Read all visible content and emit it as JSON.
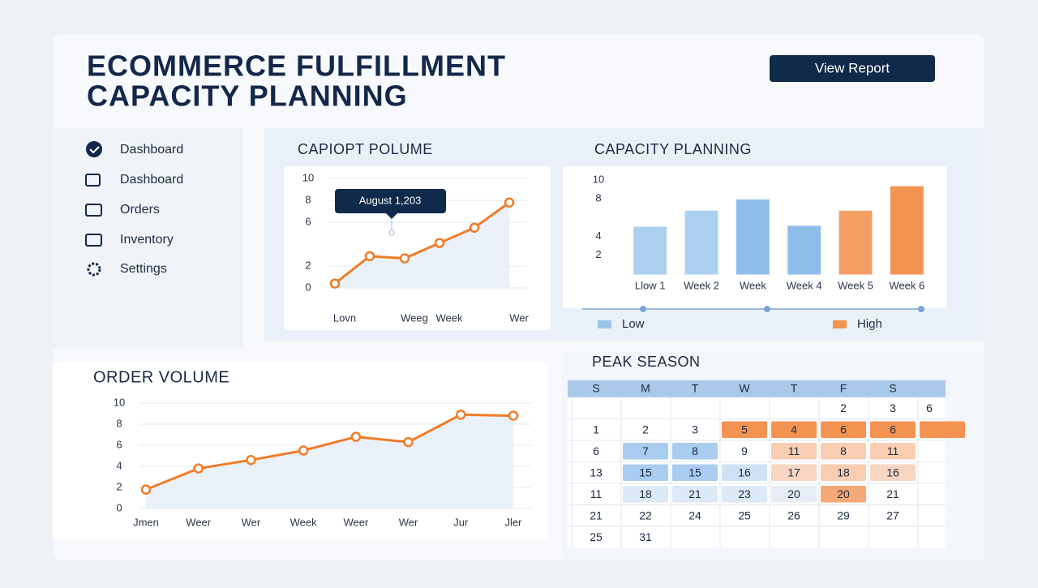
{
  "header": {
    "title_lines": [
      "ECOMMERCE FULFILLMENT",
      "CAPACITY PLANNING"
    ],
    "button": "View Report"
  },
  "nav": {
    "items": [
      "Dashboard",
      "Dashboard",
      "Orders",
      "Inventory",
      "Settings"
    ]
  },
  "chart_data": [
    {
      "type": "line",
      "title": "CAPIOPT POLUME",
      "annotation": "August 1,203",
      "categories": [
        "Lovn",
        null,
        "Weeg",
        "Week",
        null,
        "Wer"
      ],
      "values": [
        0.4,
        2.9,
        2.7,
        4.1,
        5.5,
        7.8
      ],
      "color": "#f07c28",
      "ylim": [
        0,
        10
      ],
      "yticks": [
        0,
        2,
        6,
        8,
        10
      ],
      "grid": true
    },
    {
      "type": "bar",
      "title": "CAPACITY PLANNING",
      "categories": [
        "Llow 1",
        "Week 2",
        "Week",
        "Week 4",
        "Week 5",
        "Week 6"
      ],
      "values": [
        5.0,
        6.7,
        7.9,
        5.1,
        6.7,
        9.3
      ],
      "colors": [
        "#acd0f0",
        "#acd0f0",
        "#8fbde9",
        "#8fbde9",
        "#f4a064",
        "#f39352"
      ],
      "legend": [
        {
          "name": "Low",
          "color": "#9cc5ec"
        },
        {
          "name": "High",
          "color": "#f39352"
        }
      ],
      "ylim": [
        0,
        10
      ],
      "yticks": [
        2,
        4,
        8,
        10
      ],
      "grid": false
    },
    {
      "type": "line",
      "title": "ORDER VOLUME",
      "categories": [
        "Jmen",
        "Weer",
        "Wer",
        "Week",
        "Weer",
        "Wer",
        "Jur",
        "Jler"
      ],
      "values": [
        1.8,
        3.8,
        4.6,
        5.5,
        6.8,
        6.3,
        8.9,
        8.8
      ],
      "color": "#f07c28",
      "ylim": [
        0,
        10
      ],
      "yticks": [
        0,
        2,
        4,
        6,
        8,
        10
      ],
      "grid": true
    }
  ],
  "calendar": {
    "title": "PEAK SEASON",
    "weekdays": [
      "S",
      "M",
      "T",
      "W",
      "T",
      "F",
      "S"
    ],
    "rows": [
      [
        null,
        null,
        null,
        null,
        null,
        "2",
        "3",
        "6"
      ],
      [
        "1",
        "2",
        "3",
        {
          "day": "5",
          "color": "#f39352"
        },
        {
          "day": "4",
          "color": "#f39352"
        },
        {
          "day": "6",
          "color": "#f39352"
        },
        {
          "day": "6",
          "color": "#f39352"
        },
        {
          "day": null,
          "color": "#f39352"
        }
      ],
      [
        "6",
        {
          "day": "7",
          "color": "#a9cdf0"
        },
        {
          "day": "8",
          "color": "#a9cdf0"
        },
        "9",
        {
          "day": "11",
          "color": "#f8cdb2"
        },
        {
          "day": "8",
          "color": "#f8cdb2"
        },
        {
          "day": "11",
          "color": "#f8cdb2"
        },
        null
      ],
      [
        "13",
        {
          "day": "15",
          "color": "#a9cdf0"
        },
        {
          "day": "15",
          "color": "#a9cdf0"
        },
        {
          "day": "16",
          "color": "#cfe2f5"
        },
        {
          "day": "17",
          "color": "#f8d6c1"
        },
        {
          "day": "18",
          "color": "#f8cdb2"
        },
        {
          "day": "16",
          "color": "#f8d6c1"
        },
        null
      ],
      [
        "11",
        {
          "day": "18",
          "color": "#dce9f6"
        },
        {
          "day": "21",
          "color": "#dce9f6"
        },
        {
          "day": "23",
          "color": "#dce9f6"
        },
        {
          "day": "20",
          "color": "#e6edf4"
        },
        {
          "day": "20",
          "color": "#f4a876"
        },
        "21",
        null
      ],
      [
        "21",
        "22",
        "24",
        "25",
        "26",
        "29",
        "27",
        null
      ],
      [
        "25",
        "31",
        null,
        null,
        null,
        null,
        null,
        null
      ]
    ]
  }
}
